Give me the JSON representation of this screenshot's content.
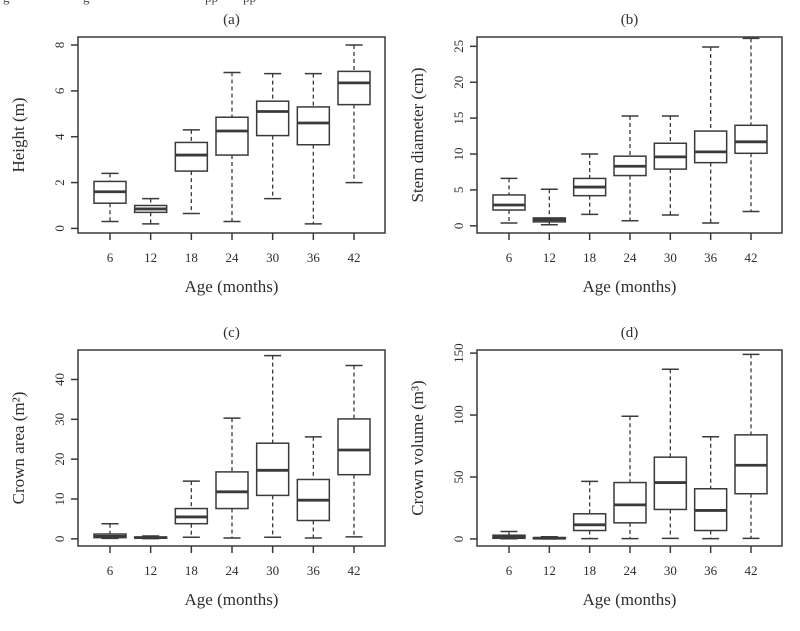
{
  "figure": {
    "background": "#ffffff",
    "line_color": "#3a3a3a",
    "text_color": "#2e2e2e",
    "top_clipped_caption_fragments": [
      {
        "text": "g",
        "x": 3
      },
      {
        "text": "g",
        "x": 83
      },
      {
        "text": "pp",
        "x": 205
      },
      {
        "text": "pp",
        "x": 243
      }
    ]
  },
  "chart_data": [
    {
      "type": "boxplot",
      "title": "(a)",
      "xlabel": "Age (months)",
      "ylabel": "Height (m)",
      "categories": [
        "6",
        "12",
        "18",
        "24",
        "30",
        "36",
        "42"
      ],
      "yticks": [
        0,
        2,
        4,
        6,
        8
      ],
      "ylim": [
        -0.2,
        8.35
      ],
      "grid": false,
      "whisker_style": "dashed",
      "boxes": [
        {
          "category": "6",
          "low": 0.3,
          "q1": 1.1,
          "median": 1.6,
          "q3": 2.05,
          "high": 2.4
        },
        {
          "category": "12",
          "low": 0.2,
          "q1": 0.7,
          "median": 0.85,
          "q3": 1.0,
          "high": 1.3
        },
        {
          "category": "18",
          "low": 0.65,
          "q1": 2.5,
          "median": 3.2,
          "q3": 3.75,
          "high": 4.3
        },
        {
          "category": "24",
          "low": 0.3,
          "q1": 3.2,
          "median": 4.25,
          "q3": 4.85,
          "high": 6.8
        },
        {
          "category": "30",
          "low": 1.3,
          "q1": 4.05,
          "median": 5.1,
          "q3": 5.55,
          "high": 6.75
        },
        {
          "category": "36",
          "low": 0.2,
          "q1": 3.65,
          "median": 4.6,
          "q3": 5.3,
          "high": 6.75
        },
        {
          "category": "42",
          "low": 2.0,
          "q1": 5.4,
          "median": 6.35,
          "q3": 6.85,
          "high": 8.0
        }
      ]
    },
    {
      "type": "boxplot",
      "title": "(b)",
      "xlabel": "Age (months)",
      "ylabel": "Stem diameter (cm)",
      "categories": [
        "6",
        "12",
        "18",
        "24",
        "30",
        "36",
        "42"
      ],
      "yticks": [
        0,
        5,
        10,
        15,
        20,
        25
      ],
      "ylim": [
        -1.0,
        26.3
      ],
      "grid": false,
      "whisker_style": "dashed",
      "boxes": [
        {
          "category": "6",
          "low": 0.4,
          "q1": 2.2,
          "median": 2.9,
          "q3": 4.3,
          "high": 6.6
        },
        {
          "category": "12",
          "low": 0.15,
          "q1": 0.55,
          "median": 0.85,
          "q3": 1.1,
          "high": 5.1
        },
        {
          "category": "18",
          "low": 1.6,
          "q1": 4.2,
          "median": 5.4,
          "q3": 6.6,
          "high": 10.0
        },
        {
          "category": "24",
          "low": 0.7,
          "q1": 7.0,
          "median": 8.3,
          "q3": 9.7,
          "high": 15.3
        },
        {
          "category": "30",
          "low": 1.5,
          "q1": 7.9,
          "median": 9.6,
          "q3": 11.5,
          "high": 15.3
        },
        {
          "category": "36",
          "low": 0.4,
          "q1": 8.8,
          "median": 10.3,
          "q3": 13.2,
          "high": 24.9
        },
        {
          "category": "42",
          "low": 2.0,
          "q1": 10.1,
          "median": 11.7,
          "q3": 14.0,
          "high": 26.1
        }
      ]
    },
    {
      "type": "boxplot",
      "title": "(c)",
      "xlabel": "Age (months)",
      "ylabel": "Crown area (m²)",
      "categories": [
        "6",
        "12",
        "18",
        "24",
        "30",
        "36",
        "42"
      ],
      "yticks": [
        0,
        10,
        20,
        30,
        40
      ],
      "ylim": [
        -1.8,
        47.4
      ],
      "grid": false,
      "whisker_style": "dashed",
      "boxes": [
        {
          "category": "6",
          "low": 0.1,
          "q1": 0.3,
          "median": 0.6,
          "q3": 1.2,
          "high": 3.8
        },
        {
          "category": "12",
          "low": 0.05,
          "q1": 0.2,
          "median": 0.3,
          "q3": 0.45,
          "high": 0.7
        },
        {
          "category": "18",
          "low": 0.4,
          "q1": 3.8,
          "median": 5.5,
          "q3": 7.6,
          "high": 14.5
        },
        {
          "category": "24",
          "low": 0.2,
          "q1": 7.6,
          "median": 11.8,
          "q3": 16.8,
          "high": 30.3
        },
        {
          "category": "30",
          "low": 0.4,
          "q1": 10.9,
          "median": 17.2,
          "q3": 24.0,
          "high": 46.0
        },
        {
          "category": "36",
          "low": 0.2,
          "q1": 4.6,
          "median": 9.7,
          "q3": 14.9,
          "high": 25.6
        },
        {
          "category": "42",
          "low": 0.5,
          "q1": 16.1,
          "median": 22.3,
          "q3": 30.1,
          "high": 43.5
        }
      ]
    },
    {
      "type": "boxplot",
      "title": "(d)",
      "xlabel": "Age (months)",
      "ylabel": "Crown volume (m³)",
      "categories": [
        "6",
        "12",
        "18",
        "24",
        "30",
        "36",
        "42"
      ],
      "yticks": [
        0,
        50,
        100,
        150
      ],
      "ylim": [
        -5.7,
        152.5
      ],
      "grid": false,
      "whisker_style": "dashed",
      "boxes": [
        {
          "category": "6",
          "low": 0.2,
          "q1": 0.5,
          "median": 1.5,
          "q3": 3.0,
          "high": 6.0
        },
        {
          "category": "12",
          "low": 0.1,
          "q1": 0.3,
          "median": 0.6,
          "q3": 1.0,
          "high": 1.8
        },
        {
          "category": "18",
          "low": 0.3,
          "q1": 6.8,
          "median": 11.4,
          "q3": 20.3,
          "high": 46.5
        },
        {
          "category": "24",
          "low": 0.3,
          "q1": 13.0,
          "median": 27.5,
          "q3": 45.5,
          "high": 99.0
        },
        {
          "category": "30",
          "low": 0.5,
          "q1": 23.8,
          "median": 45.5,
          "q3": 66.0,
          "high": 137.0
        },
        {
          "category": "36",
          "low": 0.3,
          "q1": 6.8,
          "median": 23.0,
          "q3": 40.5,
          "high": 82.5
        },
        {
          "category": "42",
          "low": 0.5,
          "q1": 36.5,
          "median": 59.5,
          "q3": 84.0,
          "high": 149.0
        }
      ]
    }
  ]
}
